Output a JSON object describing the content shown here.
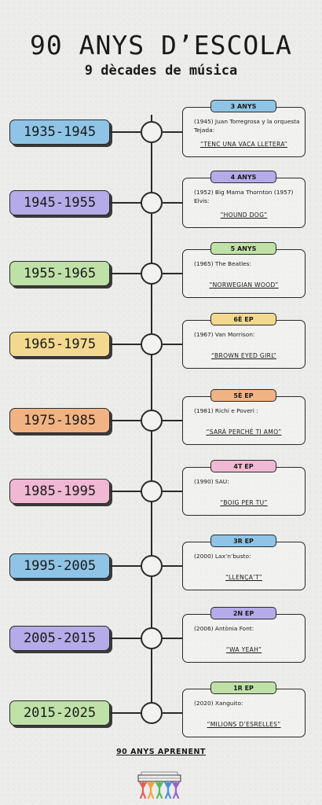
{
  "header": {
    "title": "90 ANYS D’ESCOLA",
    "subtitle": "9 dècades de música"
  },
  "timeline": [
    {
      "decade": "1935-1945",
      "badge": "3 ANYS",
      "text": "(1945) Juan Torregrosa y la orquesta Tejada:",
      "song": "“TENC UNA VACA LLETERA”",
      "color": "#8fc4e6",
      "badge_color": "#8fc4e6"
    },
    {
      "decade": "1945-1955",
      "badge": "4 ANYS",
      "text": "(1952) Big Mama Thornton (1957) Elvis:",
      "song": "“HOUND DOG”",
      "color": "#b5abe8",
      "badge_color": "#b5abe8"
    },
    {
      "decade": "1955-1965",
      "badge": "5 ANYS",
      "text": "(1965) The Beatles:",
      "song": "“NORWEGIAN WOOD”",
      "color": "#bfe1a8",
      "badge_color": "#bfe1a8"
    },
    {
      "decade": "1965-1975",
      "badge": "6È EP",
      "text": "(1967) Van Morrison:",
      "song": "“BROWN EYED GIRL”",
      "color": "#f3d98f",
      "badge_color": "#f3d98f"
    },
    {
      "decade": "1975-1985",
      "badge": "5È EP",
      "text": "(1981) Richi e Poveri :",
      "song": "“SARÀ PERCHÉ TI AMO”",
      "color": "#f2b384",
      "badge_color": "#f2b384"
    },
    {
      "decade": "1985-1995",
      "badge": "4T EP",
      "text": "(1990) SAU:",
      "song": "“BOIG PER TU”",
      "color": "#f0b8d3",
      "badge_color": "#f0b8d3"
    },
    {
      "decade": "1995-2005",
      "badge": "3R EP",
      "text": "(2000) Lax’n’busto:",
      "song": "“LLENÇA’T”",
      "color": "#8fc4e6",
      "badge_color": "#8fc4e6"
    },
    {
      "decade": "2005-2015",
      "badge": "2N EP",
      "text": "(2006) Antònia Font:",
      "song": "“WA YEAH”",
      "color": "#b5abe8",
      "badge_color": "#b5abe8"
    },
    {
      "decade": "2015-2025",
      "badge": "1R EP",
      "text": "(2020) Xanguito:",
      "song": "“MILIONS D’ESRELLES”",
      "color": "#bfe1a8",
      "badge_color": "#bfe1a8"
    }
  ],
  "footer": {
    "text": "90 ANYS APRENENT"
  }
}
